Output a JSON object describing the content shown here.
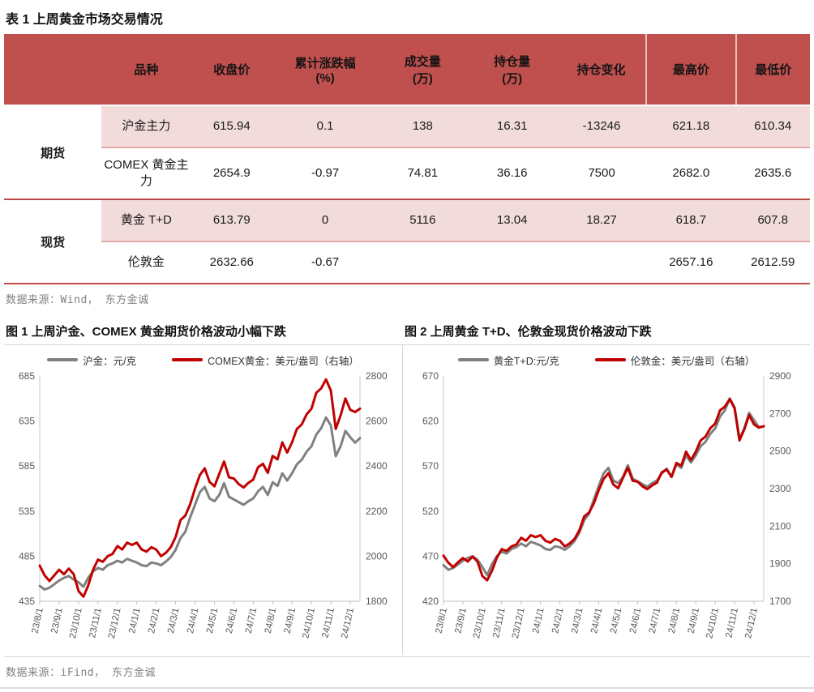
{
  "table": {
    "title": "表 1 上周黄金市场交易情况",
    "headers": {
      "name": "品种",
      "close": "收盘价",
      "change_l1": "累计涨跌幅",
      "change_l2": "(%)",
      "volume_l1": "成交量",
      "volume_l2": "(万)",
      "oi_l1": "持仓量",
      "oi_l2": "(万)",
      "oi_change": "持仓变化",
      "high": "最高价",
      "low": "最低价"
    },
    "groups": [
      {
        "label": "期货",
        "rows": [
          {
            "name": "沪金主力",
            "close": "615.94",
            "change": "0.1",
            "volume": "138",
            "oi": "16.31",
            "oi_change": "-13246",
            "high": "621.18",
            "low": "610.34"
          },
          {
            "name": "COMEX 黄金主力",
            "close": "2654.9",
            "change": "-0.97",
            "volume": "74.81",
            "oi": "36.16",
            "oi_change": "7500",
            "high": "2682.0",
            "low": "2635.6"
          }
        ]
      },
      {
        "label": "现货",
        "rows": [
          {
            "name": "黄金 T+D",
            "close": "613.79",
            "change": "0",
            "volume": "5116",
            "oi": "13.04",
            "oi_change": "18.27",
            "high": "618.7",
            "low": "607.8"
          },
          {
            "name": "伦敦金",
            "close": "2632.66",
            "change": "-0.67",
            "volume": "",
            "oi": "",
            "oi_change": "",
            "high": "2657.16",
            "low": "2612.59"
          }
        ]
      }
    ],
    "source": "数据来源：Wind， 东方金诚"
  },
  "charts_source": "数据来源：iFind， 东方金诚",
  "colors": {
    "accent_red": "#C0504D",
    "row_pink": "#F2DCDB",
    "line_red": "#C00000",
    "line_gray": "#808080"
  },
  "chart_data": [
    {
      "type": "line",
      "title": "图 1 上周沪金、COMEX 黄金期货价格波动小幅下跌",
      "x_tick_labels": [
        "23/8/1",
        "23/9/1",
        "23/10/1",
        "23/11/1",
        "23/12/1",
        "24/1/1",
        "24/2/1",
        "24/3/1",
        "24/4/1",
        "24/5/1",
        "24/6/1",
        "24/7/1",
        "24/8/1",
        "24/9/1",
        "24/10/1",
        "24/11/1",
        "24/12/1"
      ],
      "left_axis": {
        "min": 435,
        "max": 685,
        "ticks": [
          685,
          635,
          585,
          535,
          485,
          435
        ]
      },
      "right_axis": {
        "min": 1800,
        "max": 2800,
        "ticks": [
          2800,
          2600,
          2400,
          2200,
          2000,
          1800
        ]
      },
      "grid": false,
      "legend_position": "top",
      "series": [
        {
          "name": "沪金：元/克",
          "axis": "left",
          "color": "#808080",
          "values": [
            452,
            448,
            450,
            454,
            458,
            461,
            463,
            459,
            456,
            451,
            461,
            468,
            472,
            470,
            475,
            477,
            480,
            478,
            482,
            480,
            478,
            475,
            474,
            478,
            477,
            475,
            479,
            484,
            492,
            505,
            512,
            528,
            542,
            556,
            562,
            549,
            546,
            553,
            566,
            551,
            548,
            545,
            542,
            546,
            549,
            557,
            562,
            553,
            567,
            563,
            577,
            569,
            577,
            587,
            592,
            601,
            607,
            620,
            627,
            639,
            630,
            596,
            607,
            624,
            617,
            611,
            616
          ]
        },
        {
          "name": "COMEX黄金：美元/盎司（右轴）",
          "axis": "right",
          "color": "#C00000",
          "values": [
            1958,
            1915,
            1890,
            1915,
            1940,
            1920,
            1945,
            1920,
            1845,
            1820,
            1870,
            1940,
            1985,
            1975,
            2000,
            2010,
            2045,
            2030,
            2060,
            2050,
            2060,
            2030,
            2020,
            2040,
            2030,
            2000,
            2015,
            2040,
            2085,
            2160,
            2180,
            2230,
            2300,
            2360,
            2390,
            2330,
            2310,
            2365,
            2420,
            2350,
            2345,
            2320,
            2305,
            2325,
            2340,
            2395,
            2410,
            2370,
            2445,
            2430,
            2505,
            2460,
            2505,
            2565,
            2585,
            2630,
            2655,
            2725,
            2745,
            2785,
            2735,
            2565,
            2625,
            2700,
            2650,
            2640,
            2655
          ]
        }
      ]
    },
    {
      "type": "line",
      "title": "图 2 上周黄金 T+D、伦敦金现货价格波动下跌",
      "x_tick_labels": [
        "23/8/1",
        "23/9/1",
        "23/10/1",
        "23/11/1",
        "23/12/1",
        "24/1/1",
        "24/2/1",
        "24/3/1",
        "24/4/1",
        "24/5/1",
        "24/6/1",
        "24/7/1",
        "24/8/1",
        "24/9/1",
        "24/10/1",
        "24/11/1",
        "24/12/1"
      ],
      "left_axis": {
        "min": 420,
        "max": 670,
        "ticks": [
          670,
          620,
          570,
          520,
          470,
          420
        ]
      },
      "right_axis": {
        "min": 1700,
        "max": 2900,
        "ticks": [
          2900,
          2700,
          2500,
          2300,
          2100,
          1900,
          1700
        ]
      },
      "grid": false,
      "legend_position": "top",
      "series": [
        {
          "name": "黄金T+D:元/克",
          "axis": "left",
          "color": "#808080",
          "values": [
            460,
            455,
            457,
            461,
            465,
            468,
            470,
            466,
            458,
            449,
            461,
            470,
            475,
            473,
            478,
            480,
            484,
            481,
            486,
            484,
            482,
            478,
            477,
            481,
            480,
            477,
            481,
            487,
            496,
            510,
            517,
            533,
            548,
            562,
            568,
            554,
            551,
            558,
            571,
            556,
            553,
            550,
            547,
            551,
            554,
            562,
            567,
            558,
            572,
            568,
            582,
            574,
            582,
            592,
            597,
            606,
            612,
            625,
            632,
            645,
            635,
            600,
            612,
            629,
            621,
            613,
            614
          ]
        },
        {
          "name": "伦敦金：美元/盎司（右轴）",
          "axis": "right",
          "color": "#C00000",
          "values": [
            1943,
            1905,
            1882,
            1908,
            1930,
            1912,
            1938,
            1912,
            1835,
            1812,
            1862,
            1932,
            1978,
            1968,
            1992,
            2002,
            2038,
            2022,
            2052,
            2042,
            2052,
            2022,
            2012,
            2032,
            2022,
            1992,
            2008,
            2032,
            2078,
            2152,
            2172,
            2222,
            2292,
            2352,
            2382,
            2322,
            2302,
            2357,
            2412,
            2342,
            2337,
            2312,
            2297,
            2317,
            2332,
            2387,
            2402,
            2362,
            2437,
            2422,
            2497,
            2452,
            2497,
            2557,
            2577,
            2622,
            2647,
            2717,
            2737,
            2777,
            2727,
            2557,
            2617,
            2692,
            2642,
            2625,
            2633
          ]
        }
      ]
    }
  ]
}
